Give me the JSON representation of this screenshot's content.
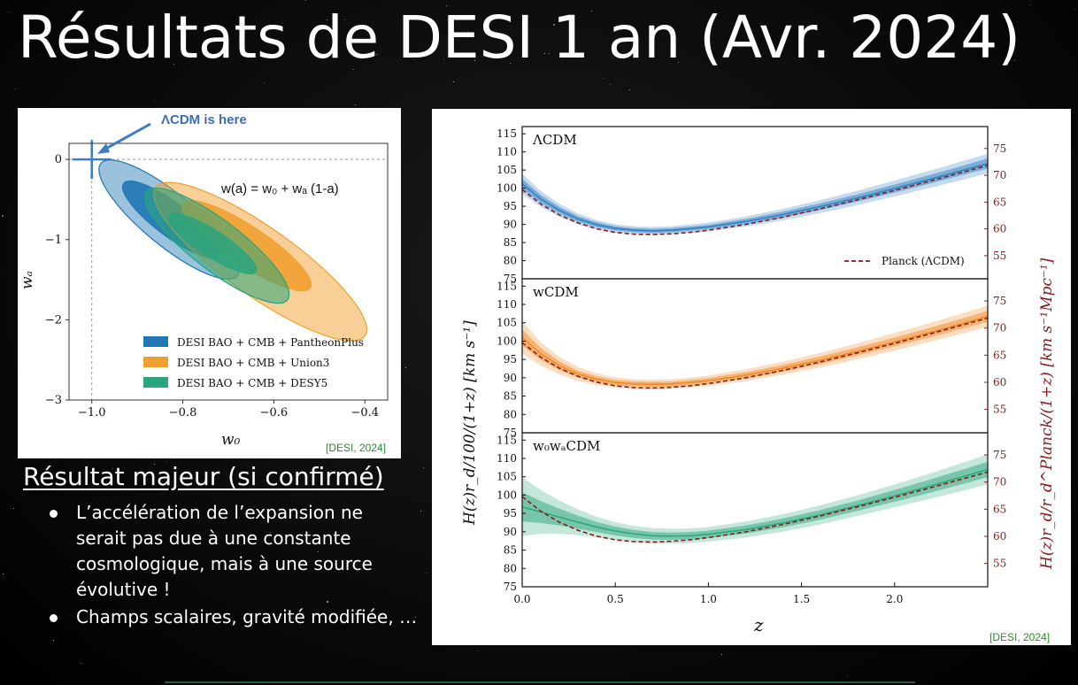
{
  "slide": {
    "title": "Résultats de DESI 1 an (Avr. 2024)",
    "subheading": "Résultat majeur (si confirmé)",
    "bullets": [
      "L’accélération de l’expansion ne serait pas due à une constante cosmologique, mais à une source évolutive !",
      "Champs scalaires, gravité modifiée, …"
    ]
  },
  "chart_data": [
    {
      "type": "scatter",
      "annotation": "ΛCDM is here",
      "equation": "w(a) = w₀ + wₐ (1-a)",
      "xlabel": "w₀",
      "ylabel": "wₐ",
      "xlim": [
        -1.05,
        -0.35
      ],
      "ylim": [
        -3,
        0.2
      ],
      "xticks": [
        -1.0,
        -0.8,
        -0.6,
        -0.4
      ],
      "xtick_labels": [
        "−1.0",
        "−0.8",
        "−0.6",
        "−0.4"
      ],
      "yticks": [
        0,
        -1,
        -2,
        -3
      ],
      "ytick_labels": [
        "0",
        "−1",
        "−2",
        "−3"
      ],
      "reference_point": {
        "x": -1.0,
        "y": 0
      },
      "legend_position": "lower-right",
      "series": [
        {
          "name": "DESI BAO + CMB + PantheonPlus",
          "color": "#1f77b4",
          "center": {
            "x": -0.827,
            "y": -0.75
          },
          "inner": {
            "w0_range": [
              -0.93,
              -0.72
            ],
            "wa_range": [
              -1.2,
              -0.3
            ]
          },
          "outer": {
            "w0_range": [
              -0.98,
              -0.68
            ],
            "wa_range": [
              -1.45,
              -0.05
            ]
          }
        },
        {
          "name": "DESI BAO + CMB + Union3",
          "color": "#f0a030",
          "center": {
            "x": -0.64,
            "y": -1.27
          },
          "inner": {
            "w0_range": [
              -0.8,
              -0.52
            ],
            "wa_range": [
              -1.6,
              -0.55
            ]
          },
          "outer": {
            "w0_range": [
              -0.86,
              -0.4
            ],
            "wa_range": [
              -2.2,
              -0.35
            ]
          }
        },
        {
          "name": "DESI BAO + CMB + DESY5",
          "color": "#2aa57c",
          "center": {
            "x": -0.727,
            "y": -1.05
          },
          "inner": {
            "w0_range": [
              -0.83,
              -0.64
            ],
            "wa_range": [
              -1.4,
              -0.7
            ]
          },
          "outer": {
            "w0_range": [
              -0.88,
              -0.57
            ],
            "wa_range": [
              -1.75,
              -0.4
            ]
          }
        }
      ],
      "citation": "[DESI, 2024]"
    },
    {
      "type": "line",
      "xlabel": "z",
      "ylabel_left": "H(z)r_d/100/(1+z) [km s⁻¹]",
      "ylabel_right": "H(z)r_d/r_d^Planck/(1+z) [km s⁻¹Mpc⁻¹]",
      "xlim": [
        0,
        2.5
      ],
      "xticks": [
        0.0,
        0.5,
        1.0,
        1.5,
        2.0
      ],
      "xtick_labels": [
        "0.0",
        "0.5",
        "1.0",
        "1.5",
        "2.0"
      ],
      "ylim_left": [
        75,
        117
      ],
      "yticks_left": [
        75,
        80,
        85,
        90,
        95,
        100,
        105,
        110,
        115
      ],
      "yticks_right": [
        55,
        60,
        65,
        70,
        75
      ],
      "right_axis_color": "#8b1a1a",
      "legend": "Planck (ΛCDM)",
      "legend_position": "lower-right of top panel",
      "planck": {
        "name": "Planck (ΛCDM)",
        "color": "#8b1a1a",
        "x": [
          0,
          0.1,
          0.2,
          0.3,
          0.4,
          0.5,
          0.6,
          0.7,
          0.8,
          0.9,
          1.0,
          1.2,
          1.4,
          1.6,
          1.8,
          2.0,
          2.2,
          2.4,
          2.5
        ],
        "y": [
          99.6,
          95.6,
          92.6,
          90.4,
          88.8,
          87.8,
          87.3,
          87.2,
          87.4,
          87.8,
          88.4,
          90.0,
          92.0,
          94.3,
          96.8,
          99.4,
          102.1,
          104.9,
          106.3
        ]
      },
      "panels": [
        {
          "name": "ΛCDM",
          "color": "#2f7fc1",
          "x": [
            0,
            0.1,
            0.2,
            0.3,
            0.4,
            0.5,
            0.6,
            0.7,
            0.8,
            0.9,
            1.0,
            1.2,
            1.4,
            1.6,
            1.8,
            2.0,
            2.2,
            2.4,
            2.5
          ],
          "y": [
            101.2,
            97.0,
            93.9,
            91.5,
            89.9,
            88.9,
            88.4,
            88.2,
            88.4,
            88.8,
            89.3,
            90.8,
            92.7,
            94.9,
            97.3,
            99.9,
            102.6,
            105.4,
            106.8
          ],
          "band_inner": [
            1.4,
            1.1,
            0.9,
            0.8,
            0.7,
            0.6,
            0.6,
            0.6,
            0.6,
            0.6,
            0.6,
            0.7,
            0.8,
            0.9,
            1.0,
            1.1,
            1.2,
            1.3,
            1.4
          ],
          "band_outer": [
            2.8,
            2.2,
            1.8,
            1.5,
            1.3,
            1.2,
            1.1,
            1.1,
            1.1,
            1.2,
            1.2,
            1.4,
            1.6,
            1.8,
            2.0,
            2.2,
            2.4,
            2.6,
            2.7
          ]
        },
        {
          "name": "wCDM",
          "color": "#f08a24",
          "x": [
            0,
            0.1,
            0.2,
            0.3,
            0.4,
            0.5,
            0.6,
            0.7,
            0.8,
            0.9,
            1.0,
            1.2,
            1.4,
            1.6,
            1.8,
            2.0,
            2.2,
            2.4,
            2.5
          ],
          "y": [
            101.0,
            96.5,
            93.3,
            91.0,
            89.6,
            88.7,
            88.3,
            88.2,
            88.3,
            88.7,
            89.2,
            90.7,
            92.6,
            94.8,
            97.2,
            99.8,
            102.5,
            105.3,
            106.8
          ],
          "band_inner": [
            2.2,
            1.6,
            1.2,
            0.9,
            0.8,
            0.7,
            0.7,
            0.7,
            0.7,
            0.7,
            0.7,
            0.8,
            0.9,
            1.0,
            1.1,
            1.2,
            1.3,
            1.4,
            1.5
          ],
          "band_outer": [
            4.5,
            3.2,
            2.4,
            1.9,
            1.6,
            1.4,
            1.3,
            1.3,
            1.3,
            1.3,
            1.4,
            1.6,
            1.8,
            2.0,
            2.2,
            2.4,
            2.6,
            2.8,
            2.9
          ]
        },
        {
          "name": "w₀wₐCDM",
          "color": "#2aa57c",
          "x": [
            0,
            0.1,
            0.2,
            0.3,
            0.4,
            0.5,
            0.6,
            0.7,
            0.8,
            0.9,
            1.0,
            1.2,
            1.4,
            1.6,
            1.8,
            2.0,
            2.2,
            2.4,
            2.5
          ],
          "y": [
            96.8,
            95.4,
            94.0,
            92.6,
            91.3,
            90.2,
            89.4,
            88.9,
            88.8,
            88.9,
            89.3,
            90.6,
            92.4,
            94.6,
            97.1,
            99.8,
            102.6,
            105.5,
            107.0
          ],
          "band_inner": [
            4.0,
            3.0,
            2.3,
            1.8,
            1.4,
            1.2,
            1.1,
            1.0,
            1.0,
            1.0,
            1.0,
            1.1,
            1.2,
            1.3,
            1.4,
            1.6,
            1.8,
            2.0,
            2.1
          ],
          "band_outer": [
            8.0,
            6.0,
            4.5,
            3.5,
            2.8,
            2.4,
            2.2,
            2.1,
            2.0,
            2.0,
            2.0,
            2.2,
            2.4,
            2.6,
            2.8,
            3.1,
            3.5,
            3.9,
            4.1
          ]
        }
      ],
      "citation": "[DESI, 2024]"
    }
  ]
}
